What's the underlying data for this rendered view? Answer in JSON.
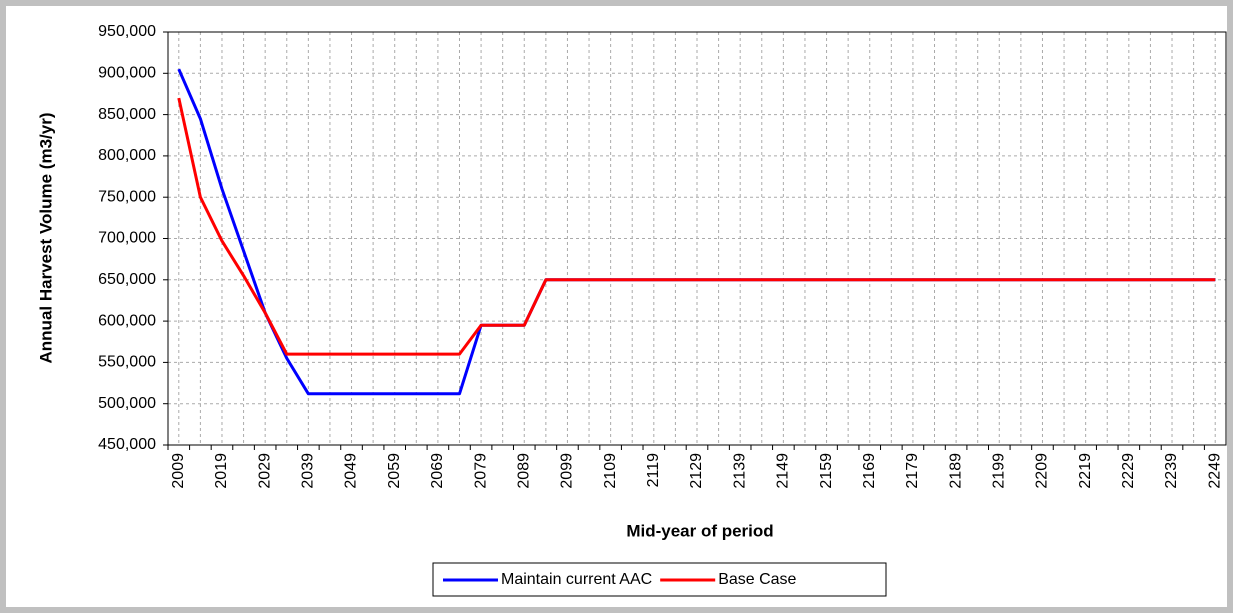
{
  "chart_data": {
    "type": "line",
    "y_label": "Annual Harvest Volume (m3/yr)",
    "x_label": "Mid-year of period",
    "categories": [
      "2009",
      null,
      "2019",
      null,
      "2029",
      null,
      "2039",
      null,
      "2049",
      null,
      "2059",
      null,
      "2069",
      null,
      "2079",
      null,
      "2089",
      null,
      "2099",
      null,
      "2109",
      null,
      "2119",
      null,
      "2129",
      null,
      "2139",
      null,
      "2149",
      null,
      "2159",
      null,
      "2169",
      null,
      "2179",
      null,
      "2189",
      null,
      "2199",
      null,
      "2209",
      null,
      "2219",
      null,
      "2229",
      null,
      "2239",
      null,
      "2249"
    ],
    "series": [
      {
        "name": "Maintain current AAC",
        "color": "#0000ff",
        "values": [
          905000,
          845000,
          760000,
          685000,
          610000,
          555000,
          512000,
          512000,
          512000,
          512000,
          512000,
          512000,
          512000,
          512000,
          595000,
          595000,
          595000,
          650000,
          650000,
          650000,
          650000,
          650000,
          650000,
          650000,
          650000,
          650000,
          650000,
          650000,
          650000,
          650000,
          650000,
          650000,
          650000,
          650000,
          650000,
          650000,
          650000,
          650000,
          650000,
          650000,
          650000,
          650000,
          650000,
          650000,
          650000,
          650000,
          650000,
          650000,
          650000
        ]
      },
      {
        "name": "Base Case",
        "color": "#ff0000",
        "values": [
          870000,
          750000,
          697000,
          655000,
          610000,
          560000,
          560000,
          560000,
          560000,
          560000,
          560000,
          560000,
          560000,
          560000,
          595000,
          595000,
          595000,
          650000,
          650000,
          650000,
          650000,
          650000,
          650000,
          650000,
          650000,
          650000,
          650000,
          650000,
          650000,
          650000,
          650000,
          650000,
          650000,
          650000,
          650000,
          650000,
          650000,
          650000,
          650000,
          650000,
          650000,
          650000,
          650000,
          650000,
          650000,
          650000,
          650000,
          650000,
          650000
        ]
      }
    ],
    "ylim": [
      450000,
      950000
    ],
    "yticks": [
      {
        "value": 450000,
        "label": "450,000"
      },
      {
        "value": 500000,
        "label": "500,000"
      },
      {
        "value": 550000,
        "label": "550,000"
      },
      {
        "value": 600000,
        "label": "600,000"
      },
      {
        "value": 650000,
        "label": "650,000"
      },
      {
        "value": 700000,
        "label": "700,000"
      },
      {
        "value": 750000,
        "label": "750,000"
      },
      {
        "value": 800000,
        "label": "800,000"
      },
      {
        "value": 850000,
        "label": "850,000"
      },
      {
        "value": 900000,
        "label": "900,000"
      },
      {
        "value": 950000,
        "label": "950,000"
      }
    ],
    "grid": true,
    "legend": "bottom"
  }
}
